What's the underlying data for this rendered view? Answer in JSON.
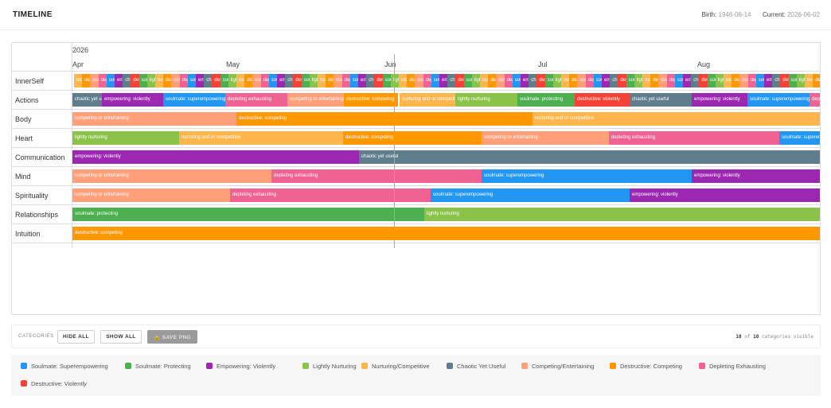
{
  "header": {
    "title": "TIMELINE",
    "birth_label": "Birth:",
    "birth_value": "1946-06-14",
    "current_label": "Current:",
    "current_value": "2026-06-02"
  },
  "timeline": {
    "year": "2026",
    "months": [
      "Apr",
      "May",
      "Jun",
      "Jul",
      "Aug"
    ]
  },
  "colors": {
    "soulmate_superempowering": "#2196f3",
    "soulmate_protecting": "#4caf50",
    "empowering_violently": "#9c27b0",
    "lightly_nurturing": "#8bc34a",
    "nurturing_competitive": "#ffb74d",
    "chaotic_yet_useful": "#607d8b",
    "competing_entertaining": "#ffa07a",
    "destructive_competing": "#ff9800",
    "depleting_exhausting": "#f06292",
    "destructive_violently": "#f44336"
  },
  "rows": [
    {
      "label": "InnerSelf",
      "segments": [
        {
          "text": "nurtu",
          "color": "nurturing_competitive"
        },
        {
          "text": "de",
          "color": "destructive_competing"
        },
        {
          "text": "comp",
          "color": "competing_entertaining"
        },
        {
          "text": "deple",
          "color": "depleting_exhausting"
        },
        {
          "text": "soul",
          "color": "soulmate_superempowering"
        },
        {
          "text": "emp",
          "color": "empowering_violently"
        },
        {
          "text": "ch",
          "color": "chaotic_yet_useful"
        },
        {
          "text": "destr",
          "color": "destructive_violently"
        },
        {
          "text": "soul",
          "color": "soulmate_protecting"
        },
        {
          "text": "lightl",
          "color": "lightly_nurturing"
        }
      ]
    },
    {
      "label": "Actions",
      "segments": [
        {
          "text": "chaotic yet useful",
          "color": "chaotic_yet_useful"
        },
        {
          "text": "empowering: violently",
          "color": "empowering_violently"
        },
        {
          "text": "soulmate: superempowering",
          "color": "soulmate_superempowering"
        },
        {
          "text": "depleting exhausting",
          "color": "depleting_exhausting"
        },
        {
          "text": "competing or entertaining",
          "color": "competing_entertaining"
        },
        {
          "text": "destructive: competing",
          "color": "destructive_competing"
        },
        {
          "text": "nurturing and or competitive",
          "color": "nurturing_competitive"
        },
        {
          "text": "lightly nurturing",
          "color": "lightly_nurturing"
        },
        {
          "text": "soulmate: protecting",
          "color": "soulmate_protecting"
        },
        {
          "text": "destructive: violently",
          "color": "destructive_violently"
        },
        {
          "text": "chaotic yet useful",
          "color": "chaotic_yet_useful"
        },
        {
          "text": "empowering: violently",
          "color": "empowering_violently"
        },
        {
          "text": "soulmate: superempowering",
          "color": "soulmate_superempowering"
        },
        {
          "text": "depleting exhausting",
          "color": "depleting_exhausting"
        }
      ]
    },
    {
      "label": "Body",
      "segments": [
        {
          "text": "competing or entertaining",
          "color": "competing_entertaining"
        },
        {
          "text": "destructive: competing",
          "color": "destructive_competing"
        },
        {
          "text": "nurturing and or competitive",
          "color": "nurturing_competitive"
        }
      ]
    },
    {
      "label": "Heart",
      "segments": [
        {
          "text": "lightly nurturing",
          "color": "lightly_nurturing"
        },
        {
          "text": "nurturing and or competitive",
          "color": "nurturing_competitive"
        },
        {
          "text": "destructive: competing",
          "color": "destructive_competing"
        },
        {
          "text": "competing or entertaining",
          "color": "competing_entertaining"
        },
        {
          "text": "depleting exhausting",
          "color": "depleting_exhausting"
        },
        {
          "text": "soulmate: superempowering",
          "color": "soulmate_superempowering"
        }
      ]
    },
    {
      "label": "Communication",
      "segments": [
        {
          "text": "empowering: violently",
          "color": "empowering_violently"
        },
        {
          "text": "chaotic yet useful",
          "color": "chaotic_yet_useful"
        }
      ]
    },
    {
      "label": "Mind",
      "segments": [
        {
          "text": "competing or entertaining",
          "color": "competing_entertaining"
        },
        {
          "text": "depleting exhausting",
          "color": "depleting_exhausting"
        },
        {
          "text": "soulmate: superempowering",
          "color": "soulmate_superempowering"
        },
        {
          "text": "empowering: violently",
          "color": "empowering_violently"
        }
      ]
    },
    {
      "label": "Spirituality",
      "segments": [
        {
          "text": "competing or entertaining",
          "color": "competing_entertaining"
        },
        {
          "text": "depleting exhausting",
          "color": "depleting_exhausting"
        },
        {
          "text": "soulmate: superempowering",
          "color": "soulmate_superempowering"
        },
        {
          "text": "empowering: violently",
          "color": "empowering_violently"
        }
      ]
    },
    {
      "label": "Relationships",
      "segments": [
        {
          "text": "soulmate: protecting",
          "color": "soulmate_protecting"
        },
        {
          "text": "lightly nurturing",
          "color": "lightly_nurturing"
        }
      ]
    },
    {
      "label": "Intuition",
      "segments": [
        {
          "text": "destructive: competing",
          "color": "destructive_competing"
        }
      ]
    }
  ],
  "controls": {
    "label": "CATEGORIES",
    "hide_all": "HIDE ALL",
    "show_all": "SHOW ALL",
    "save_png": "SAVE PNG",
    "visible_shown": "10",
    "visible_of": "of",
    "visible_total": "10",
    "visible_suffix": "categories visible"
  },
  "legend": [
    {
      "label": "Soulmate: Superempowering",
      "color": "#2196f3"
    },
    {
      "label": "Soulmate: Protecting",
      "color": "#4caf50"
    },
    {
      "label": "Empowering: Violently",
      "color": "#9c27b0"
    },
    {
      "label": "Lightly Nurturing",
      "color": "#8bc34a"
    },
    {
      "label": "Nurturing/Competitive",
      "color": "#ffb74d"
    },
    {
      "label": "Chaotic Yet Useful",
      "color": "#607d8b"
    },
    {
      "label": "Competing/Entertaining",
      "color": "#ffa07a"
    },
    {
      "label": "Destructive: Competing",
      "color": "#ff9800"
    },
    {
      "label": "Depleting Exhausting",
      "color": "#f06292"
    },
    {
      "label": "Destructive: Violently",
      "color": "#f44336"
    }
  ]
}
